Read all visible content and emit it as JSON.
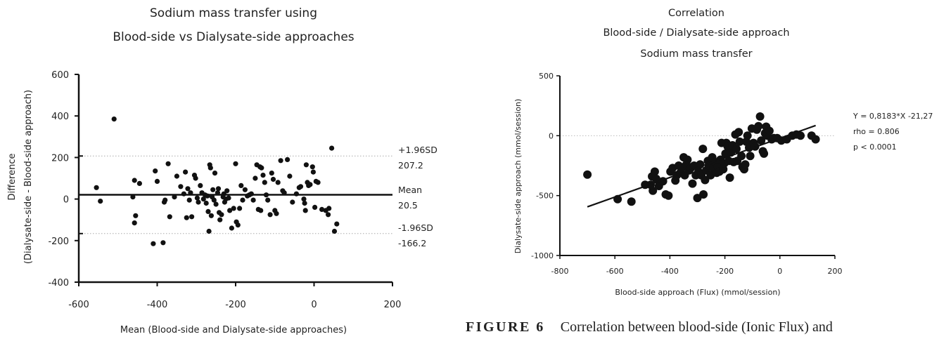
{
  "chart_data": [
    {
      "type": "scatter",
      "title_lines": [
        "Sodium mass transfer using",
        "Blood-side vs Dialysate-side approaches"
      ],
      "xlabel": "Mean (Blood-side and Dialysate-side approaches)",
      "ylabel_lines": [
        "Difference",
        "(Dialysate-side - Blood-side approach)"
      ],
      "xlim": [
        -600,
        200
      ],
      "ylim": [
        -400,
        600
      ],
      "x_ticks": [
        -600,
        -400,
        -200,
        0,
        200
      ],
      "y_ticks": [
        -400,
        -200,
        0,
        200,
        400,
        600
      ],
      "reference_lines": [
        {
          "name": "+1.96SD",
          "value": 207.2,
          "label": "+1.96SD",
          "value_label": "207.2",
          "style": "dotted"
        },
        {
          "name": "Mean",
          "value": 20.5,
          "label": "Mean",
          "value_label": "20.5",
          "style": "solid"
        },
        {
          "name": "-1.96SD",
          "value": -166.2,
          "label": "-1.96SD",
          "value_label": "-166.2",
          "style": "dotted"
        }
      ],
      "points": [
        [
          -510,
          385
        ],
        [
          -555,
          55
        ],
        [
          -545,
          -10
        ],
        [
          -462,
          10
        ],
        [
          -458,
          90
        ],
        [
          -455,
          -80
        ],
        [
          -458,
          -115
        ],
        [
          -445,
          75
        ],
        [
          -410,
          -215
        ],
        [
          -405,
          135
        ],
        [
          -400,
          85
        ],
        [
          -385,
          -210
        ],
        [
          -382,
          -15
        ],
        [
          -380,
          -5
        ],
        [
          -372,
          170
        ],
        [
          -368,
          -85
        ],
        [
          -356,
          10
        ],
        [
          -350,
          110
        ],
        [
          -340,
          60
        ],
        [
          -332,
          25
        ],
        [
          -328,
          130
        ],
        [
          -325,
          -90
        ],
        [
          -322,
          50
        ],
        [
          -318,
          -5
        ],
        [
          -315,
          30
        ],
        [
          -312,
          -85
        ],
        [
          -305,
          115
        ],
        [
          -302,
          100
        ],
        [
          -298,
          5
        ],
        [
          -295,
          -15
        ],
        [
          -290,
          65
        ],
        [
          -286,
          30
        ],
        [
          -282,
          0
        ],
        [
          -278,
          20
        ],
        [
          -275,
          -20
        ],
        [
          -272,
          15
        ],
        [
          -270,
          -60
        ],
        [
          -268,
          -155
        ],
        [
          -266,
          165
        ],
        [
          -264,
          150
        ],
        [
          -262,
          -80
        ],
        [
          -260,
          10
        ],
        [
          -258,
          45
        ],
        [
          -255,
          -5
        ],
        [
          -253,
          125
        ],
        [
          -250,
          -25
        ],
        [
          -246,
          30
        ],
        [
          -244,
          50
        ],
        [
          -242,
          -65
        ],
        [
          -240,
          -100
        ],
        [
          -236,
          -75
        ],
        [
          -232,
          10
        ],
        [
          -230,
          25
        ],
        [
          -228,
          -15
        ],
        [
          -225,
          0
        ],
        [
          -222,
          40
        ],
        [
          -218,
          5
        ],
        [
          -215,
          -55
        ],
        [
          -210,
          -140
        ],
        [
          -205,
          -45
        ],
        [
          -200,
          170
        ],
        [
          -198,
          -110
        ],
        [
          -194,
          -125
        ],
        [
          -190,
          -45
        ],
        [
          -186,
          65
        ],
        [
          -182,
          -5
        ],
        [
          -176,
          45
        ],
        [
          -170,
          15
        ],
        [
          -165,
          20
        ],
        [
          -160,
          25
        ],
        [
          -155,
          -5
        ],
        [
          -150,
          100
        ],
        [
          -146,
          165
        ],
        [
          -142,
          -50
        ],
        [
          -138,
          155
        ],
        [
          -136,
          -55
        ],
        [
          -134,
          150
        ],
        [
          -130,
          115
        ],
        [
          -126,
          80
        ],
        [
          -122,
          20
        ],
        [
          -118,
          -5
        ],
        [
          -112,
          -75
        ],
        [
          -108,
          125
        ],
        [
          -104,
          95
        ],
        [
          -100,
          -55
        ],
        [
          -96,
          -70
        ],
        [
          -92,
          80
        ],
        [
          -85,
          185
        ],
        [
          -80,
          40
        ],
        [
          -76,
          30
        ],
        [
          -68,
          190
        ],
        [
          -62,
          110
        ],
        [
          -55,
          -15
        ],
        [
          -45,
          25
        ],
        [
          -38,
          55
        ],
        [
          -34,
          60
        ],
        [
          -26,
          0
        ],
        [
          -24,
          -20
        ],
        [
          -22,
          -55
        ],
        [
          -20,
          165
        ],
        [
          -17,
          80
        ],
        [
          -14,
          65
        ],
        [
          -10,
          70
        ],
        [
          -4,
          155
        ],
        [
          -2,
          130
        ],
        [
          2,
          -40
        ],
        [
          5,
          85
        ],
        [
          10,
          80
        ],
        [
          20,
          -50
        ],
        [
          30,
          -55
        ],
        [
          36,
          -75
        ],
        [
          38,
          -45
        ],
        [
          45,
          245
        ],
        [
          52,
          -155
        ],
        [
          58,
          -120
        ]
      ]
    },
    {
      "type": "scatter",
      "title_lines": [
        "Correlation",
        "Blood-side / Dialysate-side approach",
        "Sodium mass transfer"
      ],
      "xlabel": "Blood-side approach (Flux) (mmol/session)",
      "ylabel": "Dialysate-side approach (mmol/session)",
      "xlim": [
        -800,
        200
      ],
      "ylim": [
        -1000,
        500
      ],
      "x_ticks": [
        -800,
        -600,
        -400,
        -200,
        0,
        200
      ],
      "y_ticks": [
        -1000,
        -500,
        0,
        500
      ],
      "reference_lines": [
        {
          "name": "zero",
          "value": 0,
          "style": "dotted"
        }
      ],
      "regression": {
        "slope": 0.8183,
        "intercept": -21.27,
        "x_range": [
          -700,
          130
        ]
      },
      "annotation_lines": [
        "Y = 0,8183*X -21,27",
        "rho = 0.806",
        "p < 0.0001"
      ],
      "points": [
        [
          -700,
          -325
        ],
        [
          -590,
          -530
        ],
        [
          -540,
          -550
        ],
        [
          -490,
          -410
        ],
        [
          -470,
          -410
        ],
        [
          -462,
          -460
        ],
        [
          -465,
          -340
        ],
        [
          -455,
          -300
        ],
        [
          -450,
          -360
        ],
        [
          -440,
          -420
        ],
        [
          -425,
          -380
        ],
        [
          -415,
          -490
        ],
        [
          -405,
          -500
        ],
        [
          -398,
          -300
        ],
        [
          -390,
          -270
        ],
        [
          -380,
          -375
        ],
        [
          -375,
          -330
        ],
        [
          -368,
          -250
        ],
        [
          -362,
          -310
        ],
        [
          -356,
          -270
        ],
        [
          -350,
          -180
        ],
        [
          -346,
          -330
        ],
        [
          -340,
          -240
        ],
        [
          -336,
          -200
        ],
        [
          -330,
          -290
        ],
        [
          -324,
          -270
        ],
        [
          -318,
          -400
        ],
        [
          -312,
          -250
        ],
        [
          -306,
          -330
        ],
        [
          -300,
          -520
        ],
        [
          -296,
          -300
        ],
        [
          -290,
          -240
        ],
        [
          -286,
          -330
        ],
        [
          -280,
          -110
        ],
        [
          -278,
          -490
        ],
        [
          -272,
          -370
        ],
        [
          -268,
          -290
        ],
        [
          -262,
          -210
        ],
        [
          -258,
          -250
        ],
        [
          -252,
          -330
        ],
        [
          -246,
          -180
        ],
        [
          -242,
          -270
        ],
        [
          -236,
          -220
        ],
        [
          -230,
          -310
        ],
        [
          -226,
          -260
        ],
        [
          -220,
          -300
        ],
        [
          -216,
          -200
        ],
        [
          -212,
          -60
        ],
        [
          -206,
          -280
        ],
        [
          -202,
          -230
        ],
        [
          -198,
          -150
        ],
        [
          -195,
          -60
        ],
        [
          -190,
          -90
        ],
        [
          -186,
          -210
        ],
        [
          -182,
          -350
        ],
        [
          -178,
          -140
        ],
        [
          -172,
          -80
        ],
        [
          -168,
          -220
        ],
        [
          -162,
          10
        ],
        [
          -158,
          -110
        ],
        [
          -155,
          -210
        ],
        [
          -150,
          30
        ],
        [
          -146,
          -50
        ],
        [
          -140,
          -170
        ],
        [
          -136,
          -260
        ],
        [
          -130,
          -280
        ],
        [
          -126,
          -240
        ],
        [
          -122,
          -50
        ],
        [
          -118,
          0
        ],
        [
          -112,
          -100
        ],
        [
          -108,
          -170
        ],
        [
          -102,
          60
        ],
        [
          -96,
          -60
        ],
        [
          -90,
          -90
        ],
        [
          -84,
          50
        ],
        [
          -78,
          80
        ],
        [
          -72,
          160
        ],
        [
          -68,
          -40
        ],
        [
          -62,
          -130
        ],
        [
          -58,
          -150
        ],
        [
          -54,
          20
        ],
        [
          -50,
          75
        ],
        [
          -46,
          0
        ],
        [
          -38,
          40
        ],
        [
          -30,
          -30
        ],
        [
          -22,
          -20
        ],
        [
          -10,
          -20
        ],
        [
          5,
          -40
        ],
        [
          25,
          -30
        ],
        [
          45,
          0
        ],
        [
          60,
          10
        ],
        [
          75,
          0
        ],
        [
          115,
          0
        ],
        [
          130,
          -30
        ]
      ]
    }
  ],
  "caption": {
    "label": "FIGURE 6",
    "text": "Correlation between blood-side (Ionic Flux) and"
  }
}
